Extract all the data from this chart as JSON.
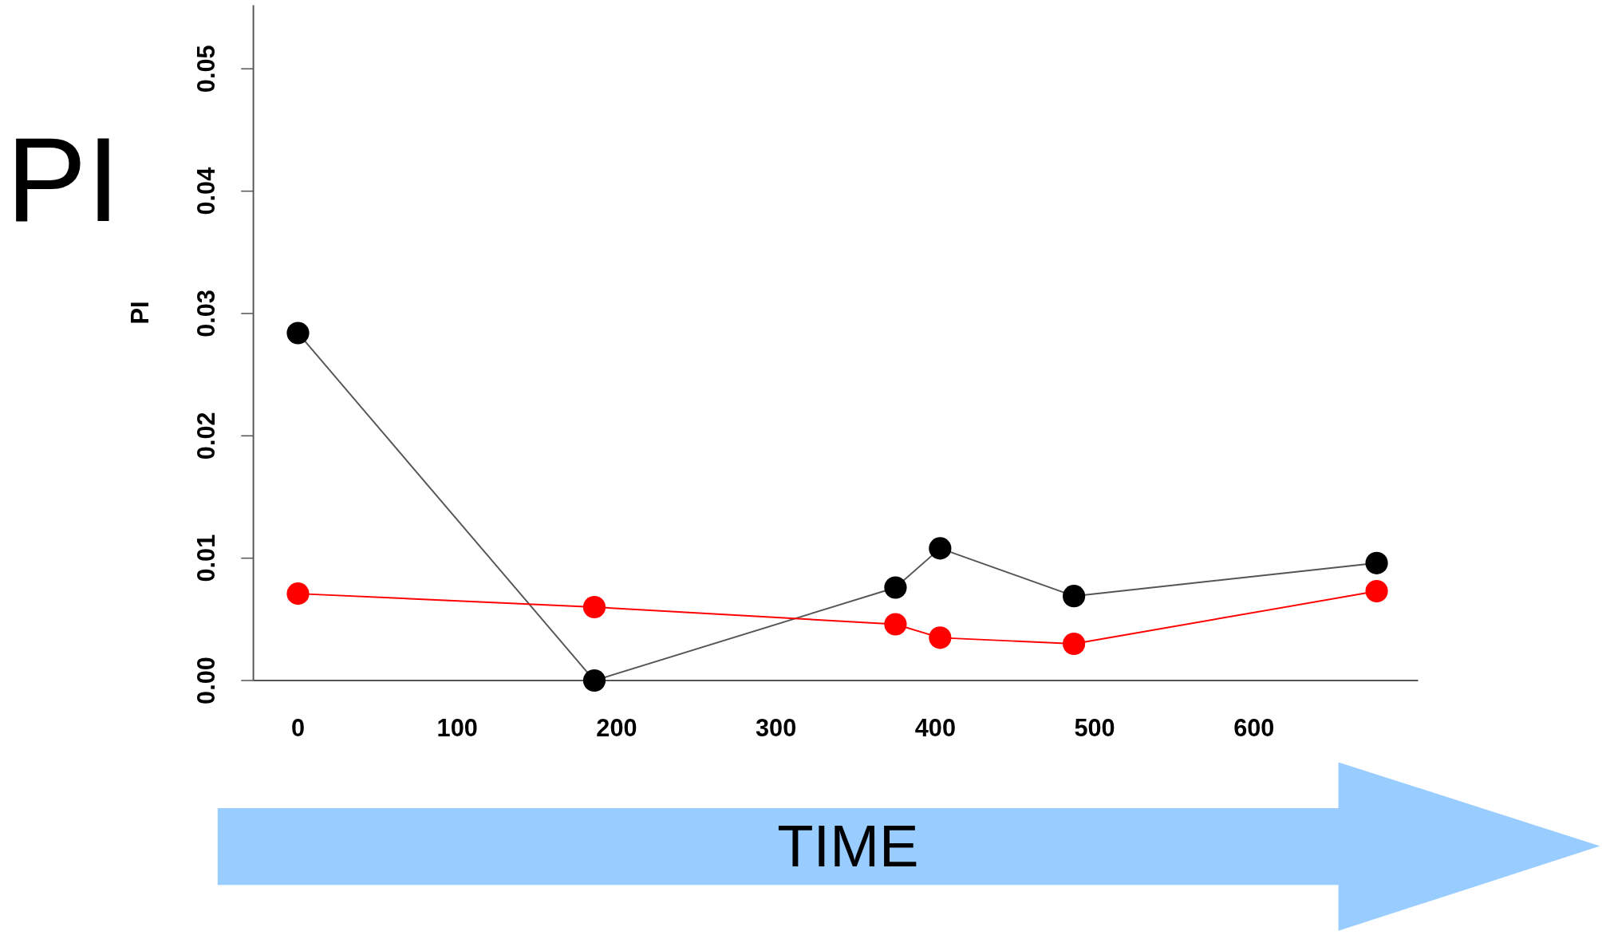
{
  "chart_data": {
    "type": "line",
    "ylabel": "PI",
    "xlabel": "TIME",
    "annotations": [
      "PI"
    ],
    "xlim": [
      -28,
      703
    ],
    "ylim": [
      0,
      0.0552
    ],
    "xticks": [
      0,
      100,
      200,
      300,
      400,
      500,
      600
    ],
    "yticks": [
      {
        "value": 0,
        "label": "0.00"
      },
      {
        "value": 0.01,
        "label": "0.01"
      },
      {
        "value": 0.02,
        "label": "0.02"
      },
      {
        "value": 0.03,
        "label": "0.03"
      },
      {
        "value": 0.04,
        "label": "0.04"
      },
      {
        "value": 0.05,
        "label": "0.05"
      }
    ],
    "marker": "circle",
    "line_style": "solid",
    "grid": false,
    "series": [
      {
        "color": "#000000",
        "x": [
          0,
          186,
          375,
          403,
          487,
          677
        ],
        "values": [
          0.0284,
          0,
          0.0076,
          0.0108,
          0.0069,
          0.0096
        ]
      },
      {
        "color": "#ff0000",
        "x": [
          0,
          186,
          375,
          403,
          487,
          677
        ],
        "values": [
          0.0071,
          0.006,
          0.0046,
          0.0035,
          0.003,
          0.0073
        ]
      }
    ]
  }
}
